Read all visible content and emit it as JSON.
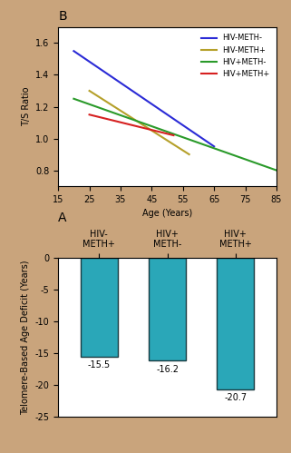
{
  "chart_data": [
    {
      "type": "line",
      "title": "B",
      "x_label": "Age (Years)",
      "y_label": "T/S Ratio",
      "xlim": [
        15,
        85
      ],
      "xticks": [
        15,
        25,
        35,
        45,
        55,
        65,
        75,
        85
      ],
      "ylim": [
        0.7,
        1.7
      ],
      "yticks": [
        0.8,
        1.0,
        1.2,
        1.4,
        1.6
      ],
      "legend": "upper right",
      "series": [
        {
          "name": "HIV-METH-",
          "color": "#2b2bd6",
          "x": [
            20,
            65
          ],
          "values": [
            1.55,
            0.95
          ]
        },
        {
          "name": "HIV-METH+",
          "color": "#b5a02a",
          "x": [
            25,
            57
          ],
          "values": [
            1.3,
            0.9
          ]
        },
        {
          "name": "HIV+METH-",
          "color": "#2a9a2a",
          "x": [
            20,
            85
          ],
          "values": [
            1.25,
            0.8
          ]
        },
        {
          "name": "HIV+METH+",
          "color": "#d62020",
          "x": [
            25,
            52
          ],
          "values": [
            1.15,
            1.02
          ]
        }
      ]
    },
    {
      "type": "bar",
      "title": "A",
      "y_label": "Telomere-Based Age Deficit (Years)",
      "categories": [
        "HIV-\nMETH+",
        "HIV+\nMETH-",
        "HIV+\nMETH+"
      ],
      "values": [
        -15.5,
        -16.2,
        -20.7
      ],
      "color": "#2aa7b8",
      "ylim": [
        -25,
        0
      ],
      "yticks": [
        0,
        -5,
        -10,
        -15,
        -20,
        -25
      ],
      "data_labels": true
    }
  ]
}
